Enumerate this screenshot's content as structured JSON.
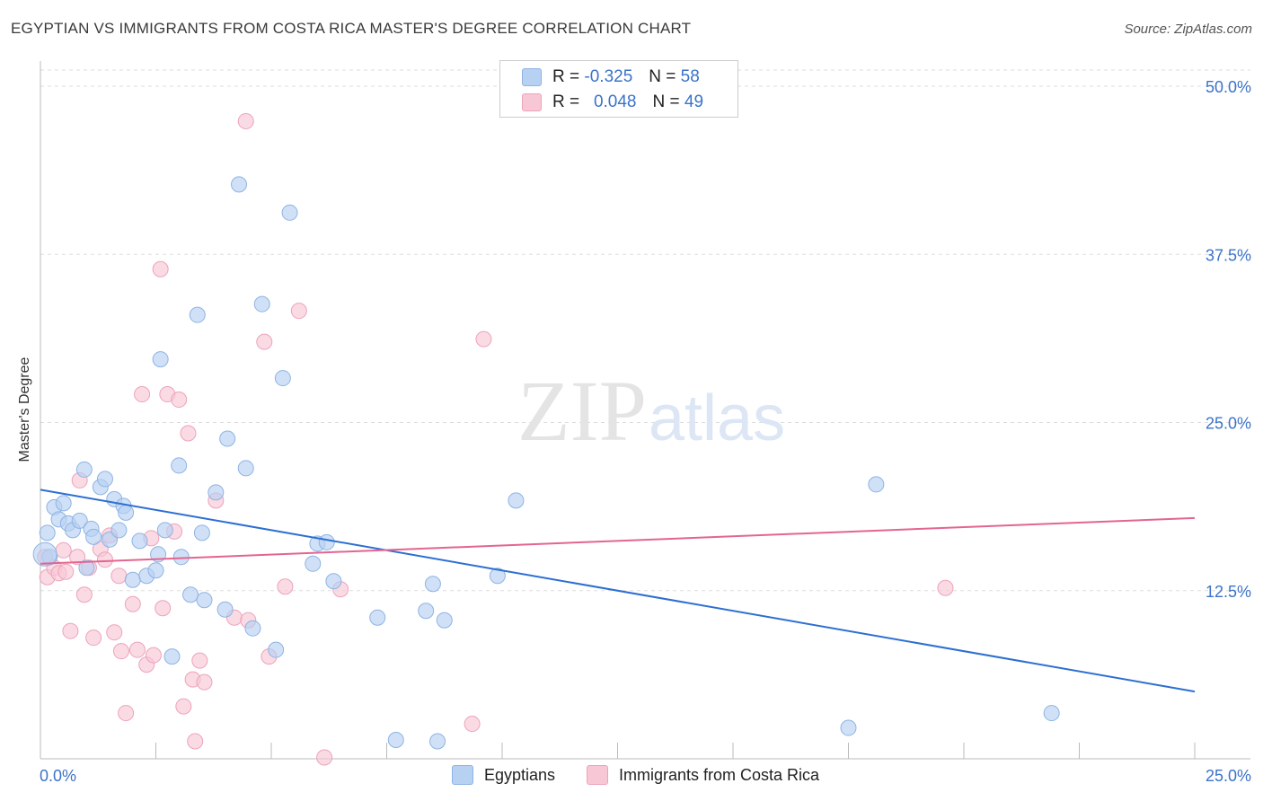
{
  "title": "EGYPTIAN VS IMMIGRANTS FROM COSTA RICA MASTER'S DEGREE CORRELATION CHART",
  "source": "Source: ZipAtlas.com",
  "watermark": {
    "zip": "ZIP",
    "atlas": "atlas"
  },
  "legend": {
    "rows": [
      {
        "r_label": "R =",
        "r_value": "-0.325",
        "n_label": "N =",
        "n_value": "58"
      },
      {
        "r_label": "R =",
        "r_value": "0.048",
        "n_label": "N =",
        "n_value": "49"
      }
    ]
  },
  "colors": {
    "blue_fill": "#b7d1f2",
    "blue_stroke": "#8fb3e3",
    "blue_line": "#2d6fd1",
    "pink_fill": "#f8c7d6",
    "pink_stroke": "#eda3bb",
    "pink_line": "#e36590",
    "tick_text": "#3b73c9",
    "grid": "#dddddd"
  },
  "chart_data": {
    "type": "scatter",
    "title": "EGYPTIAN VS IMMIGRANTS FROM COSTA RICA MASTER'S DEGREE CORRELATION CHART",
    "xlabel": "",
    "ylabel": "Master's Degree",
    "xlim": [
      0,
      25
    ],
    "ylim": [
      0,
      50
    ],
    "x_tick_labels": [
      "0.0%",
      "25.0%"
    ],
    "y_ticks": [
      12.5,
      25.0,
      37.5,
      50.0
    ],
    "y_tick_labels": [
      "12.5%",
      "25.0%",
      "37.5%",
      "50.0%"
    ],
    "series": [
      {
        "name": "Egyptians",
        "color": "#b7d1f2",
        "r": -0.325,
        "n": 58,
        "trend": {
          "x": [
            0,
            25
          ],
          "y": [
            20.0,
            5.0
          ]
        },
        "points": [
          [
            0.15,
            16.8
          ],
          [
            0.3,
            18.7
          ],
          [
            0.4,
            17.8
          ],
          [
            0.5,
            19.0
          ],
          [
            0.6,
            17.5
          ],
          [
            0.7,
            17.0
          ],
          [
            0.85,
            17.7
          ],
          [
            0.95,
            21.5
          ],
          [
            1.1,
            17.1
          ],
          [
            1.15,
            16.5
          ],
          [
            1.3,
            20.2
          ],
          [
            1.4,
            20.8
          ],
          [
            1.5,
            16.3
          ],
          [
            1.6,
            19.3
          ],
          [
            1.7,
            17.0
          ],
          [
            1.8,
            18.8
          ],
          [
            1.85,
            18.3
          ],
          [
            2.0,
            13.3
          ],
          [
            2.15,
            16.2
          ],
          [
            2.3,
            13.6
          ],
          [
            2.55,
            15.2
          ],
          [
            2.6,
            29.7
          ],
          [
            2.7,
            17.0
          ],
          [
            2.85,
            7.6
          ],
          [
            3.0,
            21.8
          ],
          [
            3.05,
            15.0
          ],
          [
            3.25,
            12.2
          ],
          [
            3.4,
            33.0
          ],
          [
            3.55,
            11.8
          ],
          [
            3.8,
            19.8
          ],
          [
            4.0,
            11.1
          ],
          [
            4.05,
            23.8
          ],
          [
            4.3,
            42.7
          ],
          [
            4.45,
            21.6
          ],
          [
            4.6,
            9.7
          ],
          [
            4.8,
            33.8
          ],
          [
            5.1,
            8.1
          ],
          [
            5.25,
            28.3
          ],
          [
            5.4,
            40.6
          ],
          [
            5.9,
            14.5
          ],
          [
            6.0,
            16.0
          ],
          [
            6.2,
            16.1
          ],
          [
            6.35,
            13.2
          ],
          [
            7.3,
            10.5
          ],
          [
            7.7,
            1.4
          ],
          [
            8.35,
            11.0
          ],
          [
            8.5,
            13.0
          ],
          [
            8.6,
            1.3
          ],
          [
            8.75,
            10.3
          ],
          [
            9.9,
            13.6
          ],
          [
            10.3,
            19.2
          ],
          [
            17.5,
            2.3
          ],
          [
            18.1,
            20.4
          ],
          [
            21.9,
            3.4
          ],
          [
            0.2,
            15.0
          ],
          [
            3.5,
            16.8
          ],
          [
            1.0,
            14.2
          ],
          [
            2.5,
            14.0
          ]
        ]
      },
      {
        "name": "Immigrants from Costa Rica",
        "color": "#f8c7d6",
        "r": 0.048,
        "n": 49,
        "trend": {
          "x": [
            0,
            25
          ],
          "y": [
            14.5,
            17.9
          ]
        },
        "points": [
          [
            0.1,
            15.0
          ],
          [
            0.15,
            13.5
          ],
          [
            0.3,
            14.2
          ],
          [
            0.4,
            13.8
          ],
          [
            0.5,
            15.5
          ],
          [
            0.55,
            13.9
          ],
          [
            0.65,
            9.5
          ],
          [
            0.8,
            15.0
          ],
          [
            0.85,
            20.7
          ],
          [
            0.95,
            12.2
          ],
          [
            1.05,
            14.2
          ],
          [
            1.15,
            9.0
          ],
          [
            1.3,
            15.6
          ],
          [
            1.4,
            14.8
          ],
          [
            1.5,
            16.6
          ],
          [
            1.6,
            9.4
          ],
          [
            1.7,
            13.6
          ],
          [
            1.75,
            8.0
          ],
          [
            1.85,
            3.4
          ],
          [
            2.0,
            11.5
          ],
          [
            2.1,
            8.1
          ],
          [
            2.2,
            27.1
          ],
          [
            2.3,
            7.0
          ],
          [
            2.4,
            16.4
          ],
          [
            2.45,
            7.7
          ],
          [
            2.6,
            36.4
          ],
          [
            2.65,
            11.2
          ],
          [
            2.75,
            27.1
          ],
          [
            2.9,
            16.9
          ],
          [
            3.0,
            26.7
          ],
          [
            3.1,
            3.9
          ],
          [
            3.2,
            24.2
          ],
          [
            3.3,
            5.9
          ],
          [
            3.35,
            1.3
          ],
          [
            3.45,
            7.3
          ],
          [
            3.55,
            5.7
          ],
          [
            3.8,
            19.2
          ],
          [
            4.2,
            10.5
          ],
          [
            4.5,
            10.3
          ],
          [
            4.85,
            31.0
          ],
          [
            4.95,
            7.6
          ],
          [
            5.3,
            12.8
          ],
          [
            5.6,
            33.3
          ],
          [
            6.15,
            0.1
          ],
          [
            6.5,
            12.6
          ],
          [
            9.6,
            31.2
          ],
          [
            9.35,
            2.6
          ],
          [
            19.6,
            12.7
          ],
          [
            4.45,
            47.4
          ]
        ]
      }
    ]
  },
  "bottom_legend": {
    "egyptians": "Egyptians",
    "costa_rica": "Immigrants from Costa Rica"
  }
}
